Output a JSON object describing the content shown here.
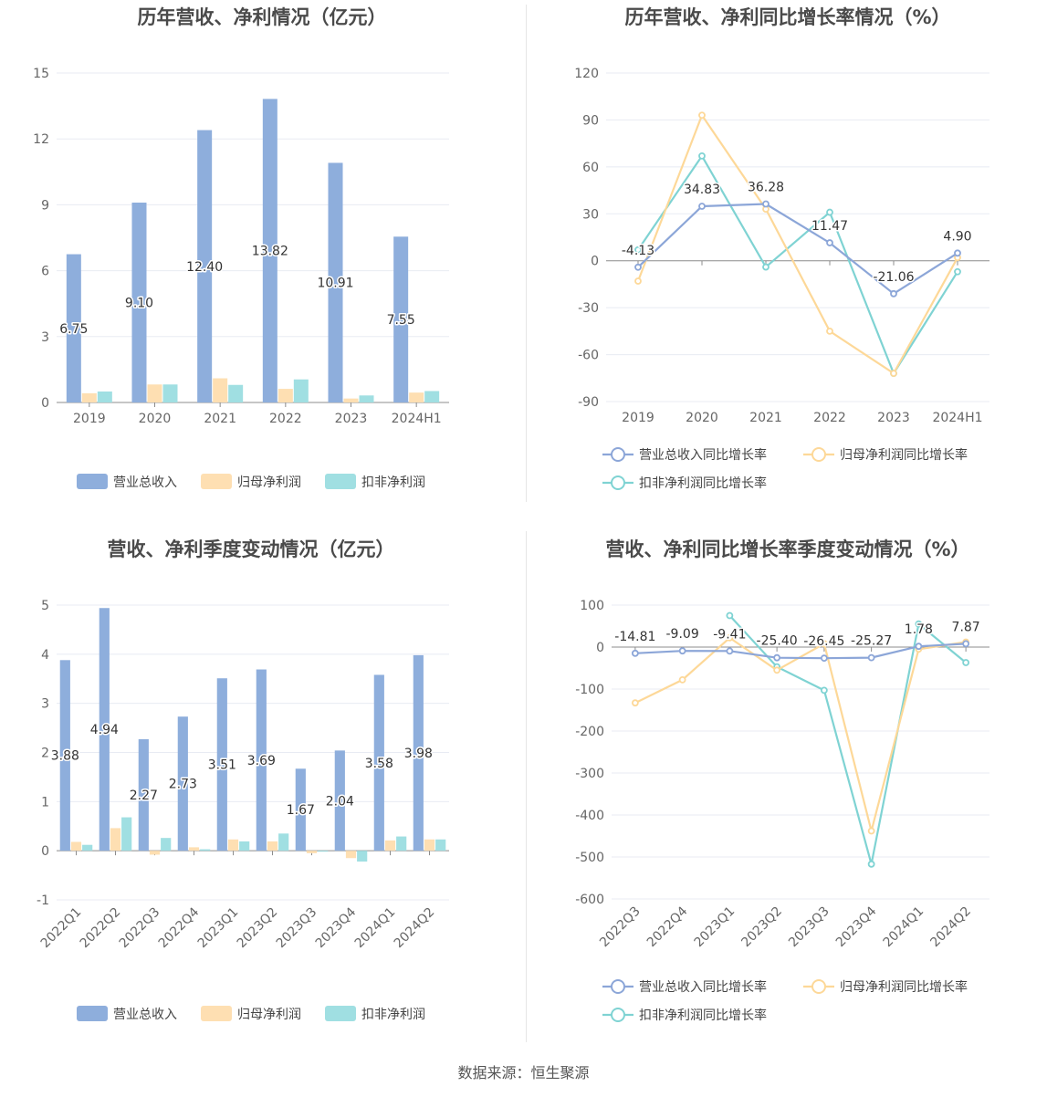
{
  "colors": {
    "revenue": "#8eaedc",
    "net_profit": "#fedfb2",
    "deducted_profit": "#a0dfe2",
    "revenue_line": "#8ca6d8",
    "net_profit_line": "#fdd898",
    "deducted_profit_line": "#7fd3d3",
    "grid": "#e8ebf3",
    "zero_axis": "#8c8c8c"
  },
  "source_text": "数据来源：恒生聚源",
  "chart_data": [
    {
      "id": "annual-amounts",
      "type": "bar",
      "title": "历年营收、净利情况（亿元）",
      "categories": [
        "2019",
        "2020",
        "2021",
        "2022",
        "2023",
        "2024H1"
      ],
      "ylim": [
        0,
        15
      ],
      "yticks": [
        "15",
        "12",
        "9",
        "6",
        "3",
        "0"
      ],
      "ytick_values": [
        15,
        12,
        9,
        6,
        3,
        0
      ],
      "grid": true,
      "legend_position": "bottom",
      "series": [
        {
          "name": "营业总收入",
          "values": [
            6.75,
            9.1,
            12.4,
            13.82,
            10.91,
            7.55
          ],
          "labels": [
            "6.75",
            "9.10",
            "12.40",
            "13.82",
            "10.91",
            "7.55"
          ]
        },
        {
          "name": "归母净利润",
          "values": [
            0.42,
            0.82,
            1.1,
            0.62,
            0.18,
            0.45
          ]
        },
        {
          "name": "扣非净利润",
          "values": [
            0.5,
            0.82,
            0.8,
            1.05,
            0.32,
            0.52
          ]
        }
      ]
    },
    {
      "id": "annual-growth",
      "type": "line",
      "title": "历年营收、净利同比增长率情况（%）",
      "categories": [
        "2019",
        "2020",
        "2021",
        "2022",
        "2023",
        "2024H1"
      ],
      "ylim": [
        -90,
        120
      ],
      "yticks": [
        "120",
        "90",
        "60",
        "30",
        "0",
        "-30",
        "-60",
        "-90"
      ],
      "ytick_values": [
        120,
        90,
        60,
        30,
        0,
        -30,
        -60,
        -90
      ],
      "grid": true,
      "legend_position": "bottom",
      "series": [
        {
          "name": "营业总收入同比增长率",
          "values": [
            -4.13,
            34.83,
            36.28,
            11.47,
            -21.06,
            4.9
          ],
          "labels": [
            "-4.13",
            "34.83",
            "36.28",
            "11.47",
            "-21.06",
            "4.90"
          ]
        },
        {
          "name": "归母净利润同比增长率",
          "values": [
            -13,
            93,
            33,
            -45,
            -72,
            2
          ]
        },
        {
          "name": "扣非净利润同比增长率",
          "values": [
            7,
            67,
            -4,
            31,
            -72,
            -7
          ]
        }
      ]
    },
    {
      "id": "quarterly-amounts",
      "type": "bar",
      "title": "营收、净利季度变动情况（亿元）",
      "categories": [
        "2022Q1",
        "2022Q2",
        "2022Q3",
        "2022Q4",
        "2023Q1",
        "2023Q2",
        "2023Q3",
        "2023Q4",
        "2024Q1",
        "2024Q2"
      ],
      "ylim": [
        -1,
        5
      ],
      "yticks": [
        "5",
        "4",
        "3",
        "2",
        "1",
        "0",
        "-1"
      ],
      "ytick_values": [
        5,
        4,
        3,
        2,
        1,
        0,
        -1
      ],
      "grid": true,
      "legend_position": "bottom",
      "series": [
        {
          "name": "营业总收入",
          "values": [
            3.88,
            4.94,
            2.27,
            2.73,
            3.51,
            3.69,
            1.67,
            2.04,
            3.58,
            3.98
          ],
          "labels": [
            "3.88",
            "4.94",
            "2.27",
            "2.73",
            "3.51",
            "3.69",
            "1.67",
            "2.04",
            "3.58",
            "3.98"
          ]
        },
        {
          "name": "归母净利润",
          "values": [
            0.18,
            0.46,
            -0.08,
            0.07,
            0.23,
            0.19,
            -0.05,
            -0.15,
            0.21,
            0.23
          ]
        },
        {
          "name": "扣非净利润",
          "values": [
            0.12,
            0.68,
            0.26,
            0.03,
            0.19,
            0.35,
            0.0,
            -0.22,
            0.29,
            0.23
          ]
        }
      ]
    },
    {
      "id": "quarterly-growth",
      "type": "line",
      "title": "营收、净利同比增长率季度变动情况（%）",
      "categories": [
        "2022Q3",
        "2022Q4",
        "2023Q1",
        "2023Q2",
        "2023Q3",
        "2023Q4",
        "2024Q1",
        "2024Q2"
      ],
      "ylim": [
        -600,
        100
      ],
      "yticks": [
        "100",
        "0",
        "-100",
        "-200",
        "-300",
        "-400",
        "-500",
        "-600"
      ],
      "ytick_values": [
        100,
        0,
        -100,
        -200,
        -300,
        -400,
        -500,
        -600
      ],
      "grid": true,
      "legend_position": "bottom",
      "series": [
        {
          "name": "营业总收入同比增长率",
          "values": [
            -14.81,
            -9.09,
            -9.41,
            -25.4,
            -26.45,
            -25.27,
            1.78,
            7.87
          ],
          "labels": [
            "-14.81",
            "-9.09",
            "-9.41",
            "-25.40",
            "-26.45",
            "-25.27",
            "1.78",
            "7.87"
          ]
        },
        {
          "name": "归母净利润同比增长率",
          "values": [
            -133,
            -78,
            22,
            -55,
            8,
            -438,
            -5,
            12
          ]
        },
        {
          "name": "扣非净利润同比增长率",
          "values": [
            null,
            null,
            75,
            -47,
            -103,
            -517,
            55,
            -37
          ]
        }
      ]
    }
  ]
}
